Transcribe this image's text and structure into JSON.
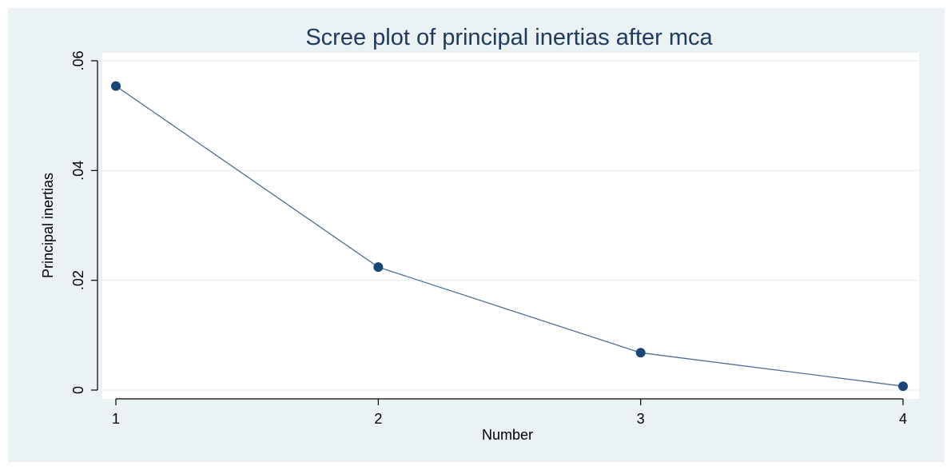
{
  "chart_data": {
    "type": "line",
    "title": "Scree plot of principal inertias after mca",
    "xlabel": "Number",
    "ylabel": "Principal inertias",
    "x": [
      1,
      2,
      3,
      4
    ],
    "series": [
      {
        "values": [
          0.0554,
          0.0224,
          0.0068,
          0.0007
        ]
      }
    ],
    "xticks": [
      {
        "value": 1,
        "label": "1"
      },
      {
        "value": 2,
        "label": "2"
      },
      {
        "value": 3,
        "label": "3"
      },
      {
        "value": 4,
        "label": "4"
      }
    ],
    "yticks": [
      {
        "value": 0,
        "label": "0"
      },
      {
        "value": 0.02,
        "label": ".02"
      },
      {
        "value": 0.04,
        "label": ".04"
      },
      {
        "value": 0.06,
        "label": ".06"
      }
    ],
    "xlim": [
      1,
      4
    ],
    "ylim": [
      0,
      0.06
    ],
    "grid": true,
    "legend": "none",
    "colors": {
      "line": "#4e6f95",
      "marker": "#1a4676",
      "title": "#1e3a5c",
      "background": "#eaf2f3",
      "plot_background": "#ffffff",
      "grid": "#eaf2f3"
    }
  }
}
